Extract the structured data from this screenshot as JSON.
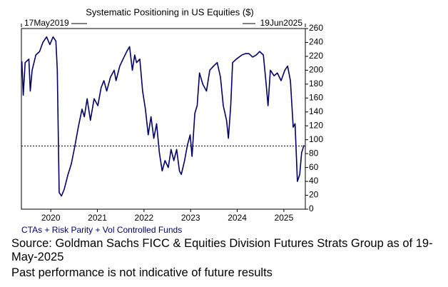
{
  "chart_data": {
    "type": "line",
    "title": "Systematic Positioning in US Equities ($)",
    "start_label": "17May2019",
    "end_label": "19Jun2025",
    "series_label": "CTAs + Risk Parity + Vol Controlled Funds",
    "source": "Source: Goldman Sachs FICC & Equities Division Futures Strats Group as of 19-May-2025",
    "disclaimer": "Past performance is not indicative of future results",
    "x": [
      2019.38,
      2019.41,
      2019.45,
      2019.53,
      2019.56,
      2019.6,
      2019.68,
      2019.76,
      2019.83,
      2019.91,
      2019.98,
      2020.05,
      2020.11,
      2020.14,
      2020.18,
      2020.23,
      2020.29,
      2020.37,
      2020.44,
      2020.52,
      2020.59,
      2020.67,
      2020.72,
      2020.78,
      2020.85,
      2020.93,
      2021.01,
      2021.08,
      2021.14,
      2021.2,
      2021.28,
      2021.36,
      2021.4,
      2021.48,
      2021.55,
      2021.63,
      2021.69,
      2021.75,
      2021.8,
      2021.84,
      2021.91,
      2021.97,
      2022.03,
      2022.09,
      2022.15,
      2022.21,
      2022.27,
      2022.33,
      2022.39,
      2022.45,
      2022.52,
      2022.58,
      2022.64,
      2022.7,
      2022.76,
      2022.8,
      2022.87,
      2022.93,
      2022.99,
      2023.03,
      2023.09,
      2023.14,
      2023.19,
      2023.26,
      2023.34,
      2023.41,
      2023.49,
      2023.57,
      2023.64,
      2023.7,
      2023.77,
      2023.81,
      2023.86,
      2023.9,
      2023.98,
      2024.1,
      2024.18,
      2024.25,
      2024.33,
      2024.41,
      2024.48,
      2024.56,
      2024.62,
      2024.66,
      2024.71,
      2024.79,
      2024.86,
      2024.94,
      2025.02,
      2025.08,
      2025.14,
      2025.2,
      2025.24,
      2025.29,
      2025.34,
      2025.38,
      2025.43
    ],
    "series": [
      {
        "name": "CTAs + Risk Parity + Vol Controlled Funds",
        "color": "#000066",
        "values": [
          213,
          164,
          211,
          216,
          170,
          200,
          222,
          227,
          240,
          248,
          237,
          248,
          242,
          200,
          24,
          19,
          29,
          50,
          65,
          92,
          118,
          144,
          133,
          159,
          128,
          159,
          149,
          175,
          185,
          170,
          190,
          200,
          185,
          206,
          216,
          227,
          234,
          200,
          222,
          211,
          216,
          170,
          144,
          107,
          133,
          102,
          123,
          81,
          55,
          70,
          60,
          86,
          70,
          86,
          55,
          50,
          70,
          92,
          107,
          76,
          138,
          149,
          196,
          180,
          170,
          200,
          206,
          211,
          190,
          149,
          128,
          102,
          149,
          211,
          216,
          222,
          224,
          224,
          219,
          222,
          227,
          222,
          180,
          149,
          200,
          192,
          196,
          185,
          200,
          206,
          185,
          118,
          123,
          40,
          50,
          81,
          92
        ]
      }
    ],
    "reference_value": 91,
    "xlim": [
      2019.37,
      2025.46
    ],
    "ylim": [
      0,
      260
    ],
    "xticks": [
      2020,
      2021,
      2022,
      2023,
      2024,
      2025
    ],
    "yticks": [
      0,
      20,
      40,
      60,
      80,
      100,
      120,
      140,
      160,
      180,
      200,
      220,
      240,
      260
    ],
    "grid": false
  }
}
